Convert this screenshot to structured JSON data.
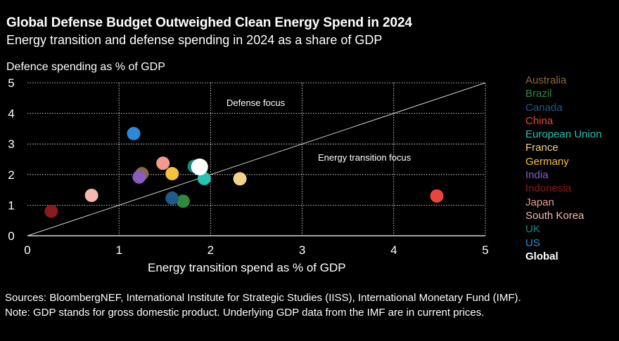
{
  "chart_data": {
    "type": "scatter",
    "title": "Global Defense Budget Outweighed Clean Energy Spend in 2024",
    "subtitle": "Energy transition and defense spending in 2024 as a share of GDP",
    "xlabel": "Energy transition spend as % of GDP",
    "ylabel": "Defence spending as % of GDP",
    "xlim": [
      0,
      5
    ],
    "ylim": [
      0,
      5
    ],
    "xticks": [
      "0",
      "1",
      "2",
      "3",
      "4",
      "5"
    ],
    "yticks": [
      "0",
      "1",
      "2",
      "3",
      "4",
      "5"
    ],
    "grid": true,
    "diagonal_line": true,
    "annotations": {
      "defense_focus": "Defense focus",
      "energy_focus": "Energy transition focus"
    },
    "series": [
      {
        "name": "Australia",
        "color": "#8a6a3a",
        "x": 1.25,
        "y": 2.03
      },
      {
        "name": "Brazil",
        "color": "#2e8b3e",
        "x": 1.7,
        "y": 1.13
      },
      {
        "name": "Canada",
        "color": "#1f5a8a",
        "x": 1.58,
        "y": 1.23
      },
      {
        "name": "China",
        "color": "#e8463c",
        "x": 4.47,
        "y": 1.3
      },
      {
        "name": "European Union",
        "color": "#27c2b1",
        "x": 1.93,
        "y": 1.87
      },
      {
        "name": "France",
        "color": "#f5d28a",
        "x": 2.32,
        "y": 1.86
      },
      {
        "name": "Germany",
        "color": "#f5c13a",
        "x": 1.58,
        "y": 2.03
      },
      {
        "name": "India",
        "color": "#8a5cc2",
        "x": 1.22,
        "y": 1.92
      },
      {
        "name": "Indonesia",
        "color": "#8b1a1a",
        "x": 0.26,
        "y": 0.8
      },
      {
        "name": "Japan",
        "color": "#f29a90",
        "x": 1.48,
        "y": 2.37
      },
      {
        "name": "South Korea",
        "color": "#f4b8b0",
        "x": 0.7,
        "y": 1.32
      },
      {
        "name": "UK",
        "color": "#148a80",
        "x": 1.82,
        "y": 2.27
      },
      {
        "name": "US",
        "color": "#2a8ad8",
        "x": 1.16,
        "y": 3.34
      },
      {
        "name": "Global",
        "color": "#ffffff",
        "x": 1.88,
        "y": 2.25
      }
    ]
  },
  "footer": {
    "sources": "Sources: BloombergNEF, International Institute for Strategic Studies (IISS), International Monetary Fund (IMF).",
    "note": "Note: GDP stands for gross domestic product. Underlying GDP data from the IMF are in current prices."
  }
}
